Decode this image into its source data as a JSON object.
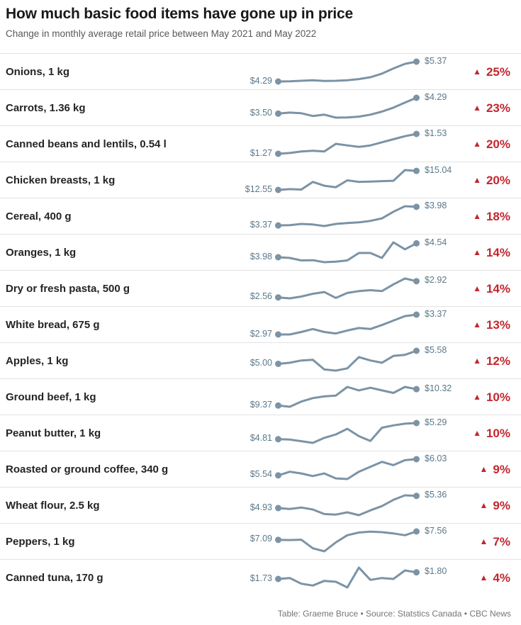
{
  "header": {
    "title": "How much basic food items have gone up in price",
    "subtitle": "Change in monthly average retail price between May 2021 and May 2022"
  },
  "footer": {
    "credit": "Table: Graeme Bruce • Source: Statstics Canada • CBC News"
  },
  "icons": {
    "up_triangle": "▲"
  },
  "colors": {
    "spark_line": "#7b93a5",
    "price_label": "#5b7889",
    "change_red": "#c2262e",
    "divider": "#e3e3e3",
    "title_text": "#191919",
    "subtitle_text": "#585858",
    "footer_text": "#757575"
  },
  "chart_data": {
    "type": "line",
    "variant": "sparkline-table",
    "title": "How much basic food items have gone up in price",
    "subtitle": "Change in monthly average retail price between May 2021 and May 2022",
    "x_start": "May 2021",
    "x_end": "May 2022",
    "points_per_series": 13,
    "legend_position": "none",
    "grid": false,
    "series": [
      {
        "label": "Onions, 1 kg",
        "start_label": "$4.29",
        "end_label": "$5.37",
        "change_label": "25%",
        "values": [
          4.29,
          4.3,
          4.33,
          4.36,
          4.32,
          4.33,
          4.36,
          4.42,
          4.52,
          4.72,
          5.0,
          5.25,
          5.37
        ]
      },
      {
        "label": "Carrots, 1.36 kg",
        "start_label": "$3.50",
        "end_label": "$4.29",
        "change_label": "23%",
        "values": [
          3.5,
          3.55,
          3.52,
          3.38,
          3.45,
          3.3,
          3.31,
          3.35,
          3.45,
          3.6,
          3.8,
          4.05,
          4.29
        ]
      },
      {
        "label": "Canned beans and lentils, 0.54 l",
        "start_label": "$1.27",
        "end_label": "$1.53",
        "change_label": "20%",
        "values": [
          1.27,
          1.28,
          1.3,
          1.31,
          1.3,
          1.4,
          1.38,
          1.36,
          1.38,
          1.42,
          1.46,
          1.5,
          1.53
        ]
      },
      {
        "label": "Chicken breasts, 1 kg",
        "start_label": "$12.55",
        "end_label": "$15.04",
        "change_label": "20%",
        "values": [
          12.55,
          12.65,
          12.6,
          13.6,
          13.1,
          12.9,
          13.8,
          13.6,
          13.65,
          13.7,
          13.75,
          15.15,
          15.04
        ]
      },
      {
        "label": "Cereal, 400 g",
        "start_label": "$3.37",
        "end_label": "$3.98",
        "change_label": "18%",
        "values": [
          3.37,
          3.38,
          3.42,
          3.4,
          3.35,
          3.42,
          3.45,
          3.47,
          3.52,
          3.6,
          3.82,
          4.0,
          3.98
        ]
      },
      {
        "label": "Oranges, 1 kg",
        "start_label": "$3.98",
        "end_label": "$4.54",
        "change_label": "14%",
        "values": [
          3.98,
          3.95,
          3.85,
          3.86,
          3.78,
          3.8,
          3.85,
          4.15,
          4.15,
          3.95,
          4.58,
          4.3,
          4.54
        ]
      },
      {
        "label": "Dry or fresh pasta, 500 g",
        "start_label": "$2.56",
        "end_label": "$2.92",
        "change_label": "14%",
        "values": [
          2.56,
          2.54,
          2.58,
          2.64,
          2.68,
          2.55,
          2.66,
          2.7,
          2.72,
          2.7,
          2.85,
          2.98,
          2.92
        ]
      },
      {
        "label": "White bread, 675 g",
        "start_label": "$2.97",
        "end_label": "$3.37",
        "change_label": "13%",
        "values": [
          2.97,
          2.97,
          3.02,
          3.08,
          3.02,
          2.99,
          3.05,
          3.1,
          3.08,
          3.16,
          3.25,
          3.34,
          3.37
        ]
      },
      {
        "label": "Apples, 1 kg",
        "start_label": "$5.00",
        "end_label": "$5.58",
        "change_label": "12%",
        "values": [
          5.0,
          5.05,
          5.15,
          5.18,
          4.75,
          4.7,
          4.8,
          5.3,
          5.15,
          5.05,
          5.35,
          5.4,
          5.58
        ]
      },
      {
        "label": "Ground beef, 1 kg",
        "start_label": "$9.37",
        "end_label": "$10.32",
        "change_label": "10%",
        "values": [
          9.37,
          9.3,
          9.6,
          9.8,
          9.9,
          9.95,
          10.45,
          10.25,
          10.4,
          10.25,
          10.1,
          10.45,
          10.32
        ]
      },
      {
        "label": "Peanut butter, 1 kg",
        "start_label": "$4.81",
        "end_label": "$5.29",
        "change_label": "10%",
        "values": [
          4.81,
          4.8,
          4.75,
          4.7,
          4.85,
          4.95,
          5.12,
          4.9,
          4.76,
          5.15,
          5.22,
          5.27,
          5.29
        ]
      },
      {
        "label": "Roasted or ground coffee, 340 g",
        "start_label": "$5.54",
        "end_label": "$6.03",
        "change_label": "9%",
        "values": [
          5.54,
          5.65,
          5.6,
          5.52,
          5.6,
          5.45,
          5.43,
          5.65,
          5.8,
          5.95,
          5.85,
          6.0,
          6.03
        ]
      },
      {
        "label": "Wheat flour, 2.5 kg",
        "start_label": "$4.93",
        "end_label": "$5.36",
        "change_label": "9%",
        "values": [
          4.93,
          4.9,
          4.95,
          4.88,
          4.72,
          4.7,
          4.78,
          4.68,
          4.85,
          5.0,
          5.22,
          5.38,
          5.36
        ]
      },
      {
        "label": "Peppers, 1 kg",
        "start_label": "$7.09",
        "end_label": "$7.56",
        "change_label": "7%",
        "values": [
          7.09,
          7.08,
          7.1,
          6.62,
          6.45,
          6.95,
          7.35,
          7.5,
          7.55,
          7.52,
          7.45,
          7.35,
          7.56
        ]
      },
      {
        "label": "Canned tuna, 170 g",
        "start_label": "$1.73",
        "end_label": "$1.80",
        "change_label": "4%",
        "values": [
          1.73,
          1.74,
          1.68,
          1.66,
          1.71,
          1.7,
          1.64,
          1.85,
          1.72,
          1.74,
          1.73,
          1.82,
          1.8
        ]
      }
    ]
  }
}
